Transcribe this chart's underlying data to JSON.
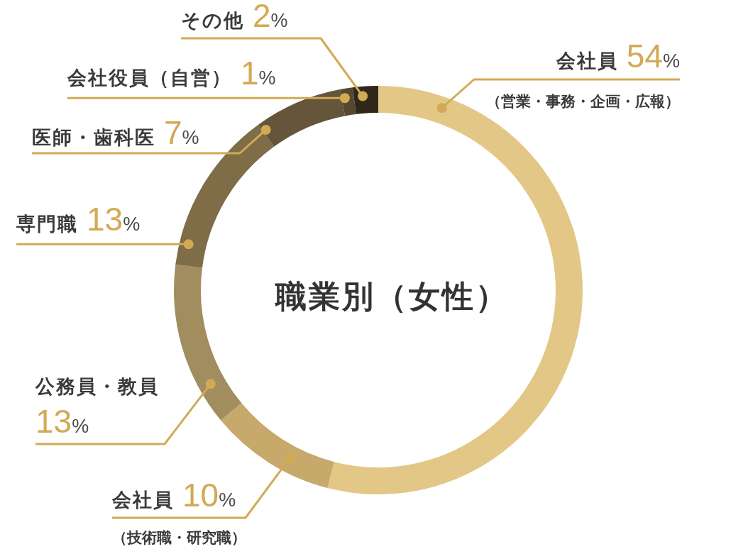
{
  "chart_data": {
    "type": "donut",
    "title": "職業別（女性）",
    "categories": [
      "会社員（営業・事務・企画・広報）",
      "会社員（技術職・研究職）",
      "公務員・教員",
      "専門職",
      "医師・歯科医",
      "会社役員（自営）",
      "その他"
    ],
    "values": [
      54,
      10,
      13,
      13,
      7,
      1,
      2
    ],
    "value_labels": [
      "54%",
      "10%",
      "13%",
      "13%",
      "7%",
      "1%",
      "2%"
    ],
    "colors": [
      "#e3c787",
      "#c6a96b",
      "#a18d5e",
      "#7f6d47",
      "#65553a",
      "#54482f",
      "#2f2719"
    ]
  }
}
